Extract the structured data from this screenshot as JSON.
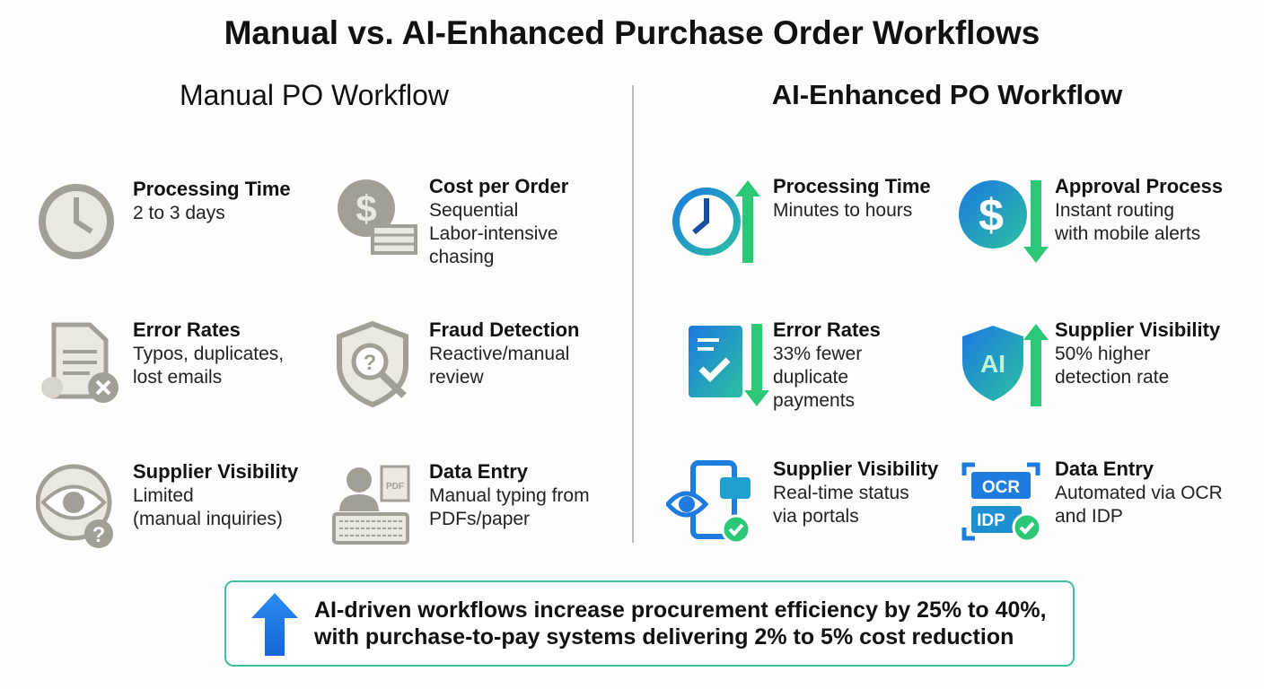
{
  "title": "Manual vs. AI-Enhanced Purchase Order Workflows",
  "manual": {
    "heading": "Manual PO Workflow",
    "items": [
      {
        "title": "Processing Time",
        "lines": [
          "2 to 3 days"
        ],
        "icon": "clock-icon"
      },
      {
        "title": "Cost per Order",
        "lines": [
          "Sequential",
          "Labor-intensive",
          "chasing"
        ],
        "icon": "dollar-cash-icon"
      },
      {
        "title": "Error Rates",
        "lines": [
          "Typos, duplicates,",
          "lost emails"
        ],
        "icon": "document-error-icon"
      },
      {
        "title": "Fraud Detection",
        "lines": [
          "Reactive/manual",
          "review"
        ],
        "icon": "shield-search-icon"
      },
      {
        "title": "Supplier Visibility",
        "lines": [
          "Limited",
          "(manual inquiries)"
        ],
        "icon": "globe-eye-icon"
      },
      {
        "title": "Data Entry",
        "lines": [
          "Manual typing from",
          "PDFs/paper"
        ],
        "icon": "person-keyboard-icon"
      }
    ]
  },
  "ai": {
    "heading": "AI-Enhanced PO Workflow",
    "items": [
      {
        "title": "Processing Time",
        "lines": [
          "Minutes to hours"
        ],
        "icon": "clock-arrow-up-icon"
      },
      {
        "title": "Approval Process",
        "lines": [
          "Instant routing",
          "with mobile alerts"
        ],
        "icon": "dollar-arrow-down-icon"
      },
      {
        "title": "Error Rates",
        "lines": [
          "33% fewer",
          "duplicate",
          "payments"
        ],
        "icon": "document-check-arrow-down-icon"
      },
      {
        "title": "Supplier Visibility",
        "lines": [
          "50% higher",
          "detection rate"
        ],
        "icon": "ai-shield-arrow-up-icon"
      },
      {
        "title": "Supplier Visibility",
        "lines": [
          "Real-time status",
          "via portals"
        ],
        "icon": "phone-eye-check-icon"
      },
      {
        "title": "Data Entry",
        "lines": [
          "Automated via OCR",
          "and IDP"
        ],
        "icon": "ocr-idp-check-icon",
        "labels": [
          "OCR",
          "IDP"
        ]
      }
    ]
  },
  "note": {
    "lines": [
      "AI-driven workflows increase procurement efficiency by 25% to 40%,",
      "with purchase-to-pay systems delivering 2% to 5% cost reduction"
    ],
    "icon": "arrow-up-icon"
  },
  "colors": {
    "gray": "#a09d95",
    "blue": "#1e7be0",
    "green": "#2cc878"
  }
}
